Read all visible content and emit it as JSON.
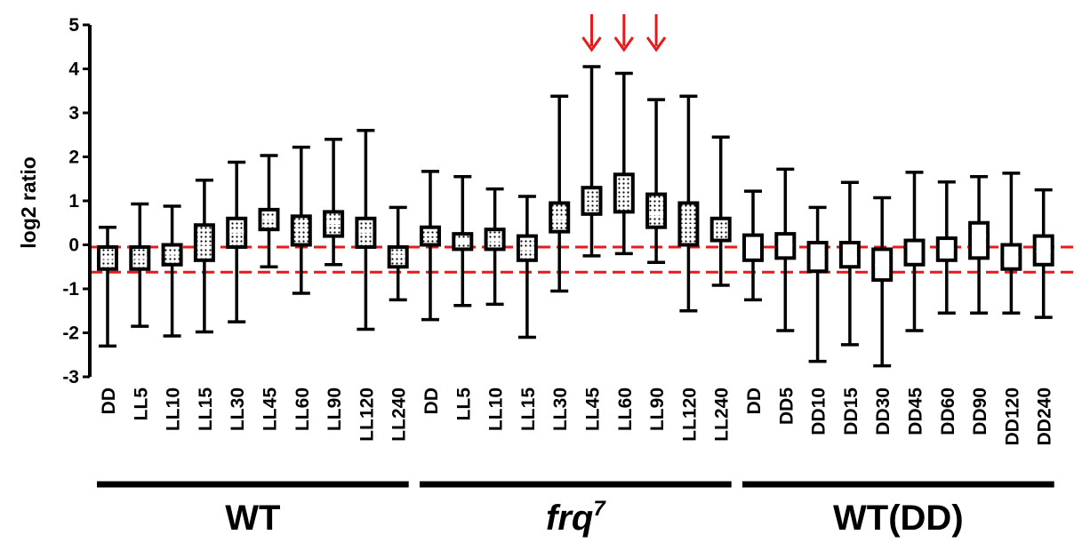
{
  "chart_data": {
    "type": "boxplot",
    "ylabel": "log2 ratio",
    "ylim": [
      -3,
      5
    ],
    "yticks": [
      "-3",
      "-2",
      "-1",
      "0",
      "1",
      "2",
      "3",
      "4",
      "5"
    ],
    "reference_lines": [
      -0.05,
      -0.62
    ],
    "reference_line_color": "#e8191c",
    "arrow_color": "#e8191c",
    "arrows_over": [
      "LL45",
      "LL60",
      "LL90"
    ],
    "groups": [
      {
        "label": "WT",
        "label_sup": "",
        "italic": false,
        "boxes": [
          {
            "x": "DD",
            "min": -2.3,
            "q1": -0.55,
            "median": -0.3,
            "q3": -0.05,
            "max": 0.4,
            "filled": true
          },
          {
            "x": "LL5",
            "min": -1.85,
            "q1": -0.55,
            "median": -0.3,
            "q3": -0.05,
            "max": 0.93,
            "filled": true
          },
          {
            "x": "LL10",
            "min": -2.07,
            "q1": -0.45,
            "median": -0.2,
            "q3": 0.0,
            "max": 0.88,
            "filled": true
          },
          {
            "x": "LL15",
            "min": -1.98,
            "q1": -0.35,
            "median": -0.05,
            "q3": 0.45,
            "max": 1.47,
            "filled": true
          },
          {
            "x": "LL30",
            "min": -1.75,
            "q1": -0.05,
            "median": 0.3,
            "q3": 0.6,
            "max": 1.88,
            "filled": true
          },
          {
            "x": "LL45",
            "min": -0.5,
            "q1": 0.35,
            "median": 0.6,
            "q3": 0.8,
            "max": 2.03,
            "filled": true
          },
          {
            "x": "LL60",
            "min": -1.1,
            "q1": 0.0,
            "median": 0.35,
            "q3": 0.65,
            "max": 2.22,
            "filled": true
          },
          {
            "x": "LL90",
            "min": -0.45,
            "q1": 0.2,
            "median": 0.5,
            "q3": 0.75,
            "max": 2.4,
            "filled": true
          },
          {
            "x": "LL120",
            "min": -1.92,
            "q1": -0.05,
            "median": 0.3,
            "q3": 0.6,
            "max": 2.6,
            "filled": true
          },
          {
            "x": "LL240",
            "min": -1.25,
            "q1": -0.5,
            "median": -0.25,
            "q3": -0.05,
            "max": 0.85,
            "filled": true
          }
        ]
      },
      {
        "label": "frq",
        "label_sup": "7",
        "italic": true,
        "boxes": [
          {
            "x": "DD",
            "min": -1.7,
            "q1": 0.0,
            "median": 0.22,
            "q3": 0.4,
            "max": 1.67,
            "filled": true
          },
          {
            "x": "LL5",
            "min": -1.38,
            "q1": -0.1,
            "median": 0.08,
            "q3": 0.25,
            "max": 1.55,
            "filled": true
          },
          {
            "x": "LL10",
            "min": -1.35,
            "q1": -0.1,
            "median": 0.1,
            "q3": 0.35,
            "max": 1.27,
            "filled": true
          },
          {
            "x": "LL15",
            "min": -2.1,
            "q1": -0.35,
            "median": -0.1,
            "q3": 0.2,
            "max": 1.1,
            "filled": true
          },
          {
            "x": "LL30",
            "min": -1.05,
            "q1": 0.3,
            "median": 0.6,
            "q3": 0.95,
            "max": 3.38,
            "filled": true
          },
          {
            "x": "LL45",
            "min": -0.25,
            "q1": 0.7,
            "median": 0.95,
            "q3": 1.3,
            "max": 4.05,
            "filled": true
          },
          {
            "x": "LL60",
            "min": -0.2,
            "q1": 0.75,
            "median": 1.05,
            "q3": 1.6,
            "max": 3.9,
            "filled": true
          },
          {
            "x": "LL90",
            "min": -0.4,
            "q1": 0.4,
            "median": 0.7,
            "q3": 1.15,
            "max": 3.3,
            "filled": true
          },
          {
            "x": "LL120",
            "min": -1.5,
            "q1": 0.0,
            "median": 0.45,
            "q3": 0.95,
            "max": 3.38,
            "filled": true
          },
          {
            "x": "LL240",
            "min": -0.92,
            "q1": 0.1,
            "median": 0.35,
            "q3": 0.6,
            "max": 2.45,
            "filled": true
          }
        ]
      },
      {
        "label": "WT(DD)",
        "label_sup": "",
        "italic": false,
        "boxes": [
          {
            "x": "DD",
            "min": -1.25,
            "q1": -0.35,
            "median": -0.1,
            "q3": 0.22,
            "max": 1.22,
            "filled": false
          },
          {
            "x": "DD5",
            "min": -1.95,
            "q1": -0.3,
            "median": 0.0,
            "q3": 0.25,
            "max": 1.72,
            "filled": false
          },
          {
            "x": "DD10",
            "min": -2.65,
            "q1": -0.6,
            "median": -0.3,
            "q3": 0.05,
            "max": 0.85,
            "filled": false
          },
          {
            "x": "DD15",
            "min": -2.27,
            "q1": -0.5,
            "median": -0.3,
            "q3": 0.05,
            "max": 1.42,
            "filled": false
          },
          {
            "x": "DD30",
            "min": -2.75,
            "q1": -0.8,
            "median": -0.45,
            "q3": -0.1,
            "max": 1.07,
            "filled": false
          },
          {
            "x": "DD45",
            "min": -1.95,
            "q1": -0.45,
            "median": -0.15,
            "q3": 0.1,
            "max": 1.65,
            "filled": false
          },
          {
            "x": "DD60",
            "min": -1.55,
            "q1": -0.35,
            "median": -0.1,
            "q3": 0.15,
            "max": 1.43,
            "filled": false
          },
          {
            "x": "DD90",
            "min": -1.55,
            "q1": -0.3,
            "median": 0.2,
            "q3": 0.5,
            "max": 1.55,
            "filled": false
          },
          {
            "x": "DD120",
            "min": -1.55,
            "q1": -0.55,
            "median": -0.3,
            "q3": 0.0,
            "max": 1.63,
            "filled": false
          },
          {
            "x": "DD240",
            "min": -1.65,
            "q1": -0.45,
            "median": -0.15,
            "q3": 0.2,
            "max": 1.25,
            "filled": false
          }
        ]
      }
    ]
  }
}
